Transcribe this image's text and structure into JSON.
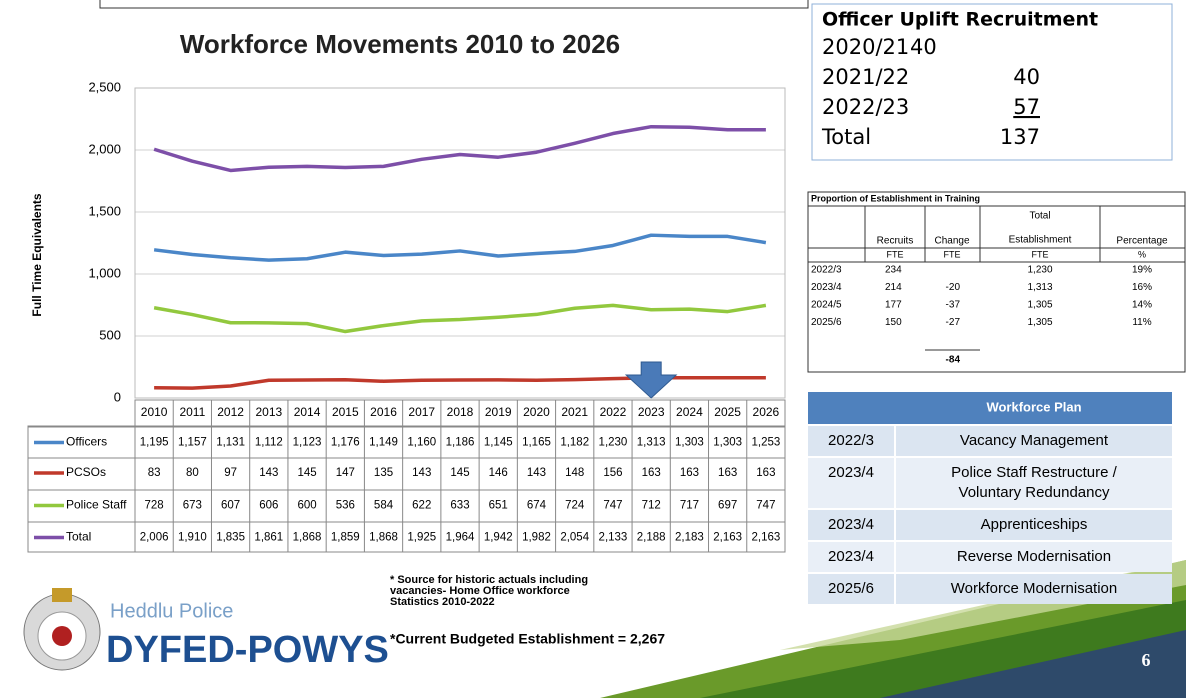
{
  "chart_data": {
    "type": "line",
    "title": "Workforce Movements 2010 to 2026",
    "y_label": "Full Time Equivalents",
    "categories": [
      "2010",
      "2011",
      "2012",
      "2013",
      "2014",
      "2015",
      "2016",
      "2017",
      "2018",
      "2019",
      "2020",
      "2021",
      "2022",
      "2023",
      "2024",
      "2025",
      "2026"
    ],
    "series": [
      {
        "name": "Officers",
        "color": "#4a86c8",
        "values": [
          1195,
          1157,
          1131,
          1112,
          1123,
          1176,
          1149,
          1160,
          1186,
          1145,
          1165,
          1182,
          1230,
          1313,
          1303,
          1303,
          1253
        ],
        "value_labels": [
          "1,195",
          "1,157",
          "1,131",
          "1,112",
          "1,123",
          "1,176",
          "1,149",
          "1,160",
          "1,186",
          "1,145",
          "1,165",
          "1,182",
          "1,230",
          "1,313",
          "1,303",
          "1,303",
          "1,253"
        ]
      },
      {
        "name": "PCSOs",
        "color": "#c0392b",
        "values": [
          83,
          80,
          97,
          143,
          145,
          147,
          135,
          143,
          145,
          146,
          143,
          148,
          156,
          163,
          163,
          163,
          163
        ]
      },
      {
        "name": "Police Staff",
        "color": "#92c83e",
        "values": [
          728,
          673,
          607,
          606,
          600,
          536,
          584,
          622,
          633,
          651,
          674,
          724,
          747,
          712,
          717,
          697,
          747
        ]
      },
      {
        "name": "Total",
        "color": "#7d4fa8",
        "values": [
          2006,
          1910,
          1835,
          1861,
          1868,
          1859,
          1868,
          1925,
          1964,
          1942,
          1982,
          2054,
          2133,
          2188,
          2183,
          2163,
          2163
        ],
        "value_labels": [
          "2,006",
          "1,910",
          "1,835",
          "1,861",
          "1,868",
          "1,859",
          "1,868",
          "1,925",
          "1,964",
          "1,942",
          "1,982",
          "2,054",
          "2,133",
          "2,188",
          "2,183",
          "2,163",
          "2,163"
        ]
      }
    ],
    "ylim": [
      0,
      2500
    ],
    "yticks": [
      0,
      500,
      {
        "value": 1000,
        "label": "1,000"
      },
      {
        "value": 1500,
        "label": "1,500"
      },
      {
        "value": 2000,
        "label": "2,000"
      },
      {
        "value": 2500,
        "label": "2,500"
      }
    ],
    "grid": true
  },
  "uplift": {
    "title": "Officer Uplift Recruitment",
    "rows": [
      [
        "2020/21",
        "40"
      ],
      [
        "2021/22",
        "40"
      ],
      [
        "2022/23",
        "57"
      ],
      [
        "Total",
        "137"
      ]
    ]
  },
  "training": {
    "title": "Proportion of Establishment in Training",
    "headers": [
      "Recruits",
      "Change",
      "Total",
      "Establishment",
      "Percentage"
    ],
    "units": [
      "FTE",
      "FTE",
      "FTE",
      "%"
    ],
    "rows": [
      [
        "2022/3",
        "234",
        null,
        "1,230",
        "19%"
      ],
      [
        "2023/4",
        "214",
        "-20",
        "1,313",
        "16%"
      ],
      [
        "2024/5",
        "177",
        "-37",
        "1,305",
        "14%"
      ],
      [
        "2025/6",
        "150",
        "-27",
        "1,305",
        "11%"
      ]
    ],
    "total_change": "-84"
  },
  "plan": {
    "header": "Workforce Plan",
    "rows": [
      [
        "2022/3",
        "Vacancy Management"
      ],
      [
        "2023/4",
        "Police Staff Restructure /",
        "Voluntary Redundancy"
      ],
      [
        "2023/4",
        "Apprenticeships"
      ],
      [
        "2023/4",
        "Reverse Modernisation"
      ],
      [
        "2025/6",
        "Workforce Modernisation"
      ]
    ]
  },
  "footer": {
    "source": [
      "* Source for historic actuals including",
      "vacancies- Home Office workforce",
      "Statistics 2010-2022"
    ],
    "budget": "*Current Budgeted Establishment = 2,267",
    "logo_top": "Heddlu Police",
    "logo_bottom": "DYFED-POWYS",
    "page_number": "6"
  }
}
